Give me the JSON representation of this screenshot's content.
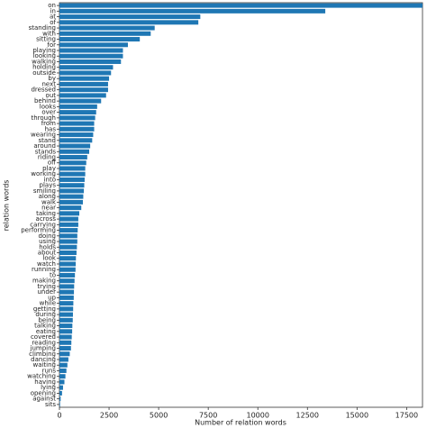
{
  "chart_data": {
    "type": "hbar",
    "xlabel": "Number of relation words",
    "ylabel": "relation words",
    "color": "#1f77b4",
    "categories": [
      "on",
      "in",
      "at",
      "of",
      "standing",
      "with",
      "sitting",
      "for",
      "playing",
      "looking",
      "walking",
      "holding",
      "outside",
      "by",
      "next",
      "dressed",
      "out",
      "behind",
      "looks",
      "over",
      "through",
      "from",
      "has",
      "wearing",
      "stand",
      "around",
      "stands",
      "riding",
      "off",
      "play",
      "working",
      "into",
      "plays",
      "smiling",
      "along",
      "walk",
      "near",
      "taking",
      "across",
      "carrying",
      "performing",
      "doing",
      "using",
      "holds",
      "about",
      "look",
      "watch",
      "running",
      "to",
      "making",
      "trying",
      "under",
      "up",
      "while",
      "getting",
      "during",
      "being",
      "talking",
      "eating",
      "covered",
      "reading",
      "jumping",
      "climbing",
      "dancing",
      "waiting",
      "runs",
      "watching",
      "having",
      "lying",
      "opening",
      "against",
      "sits"
    ],
    "values": [
      18300,
      13400,
      7100,
      7000,
      4800,
      4600,
      4050,
      3450,
      3200,
      3200,
      3100,
      2700,
      2600,
      2500,
      2450,
      2450,
      2350,
      2100,
      1900,
      1850,
      1800,
      1750,
      1750,
      1700,
      1650,
      1550,
      1500,
      1400,
      1350,
      1300,
      1300,
      1270,
      1250,
      1230,
      1200,
      1180,
      1100,
      1000,
      950,
      950,
      920,
      900,
      900,
      880,
      860,
      830,
      820,
      810,
      780,
      760,
      740,
      730,
      720,
      700,
      690,
      680,
      670,
      650,
      640,
      620,
      600,
      580,
      520,
      450,
      400,
      350,
      300,
      250,
      180,
      130,
      60,
      30
    ],
    "xlim": [
      0,
      18300
    ],
    "xticks": [
      0,
      2500,
      5000,
      7500,
      10000,
      12500,
      15000,
      17500
    ]
  }
}
